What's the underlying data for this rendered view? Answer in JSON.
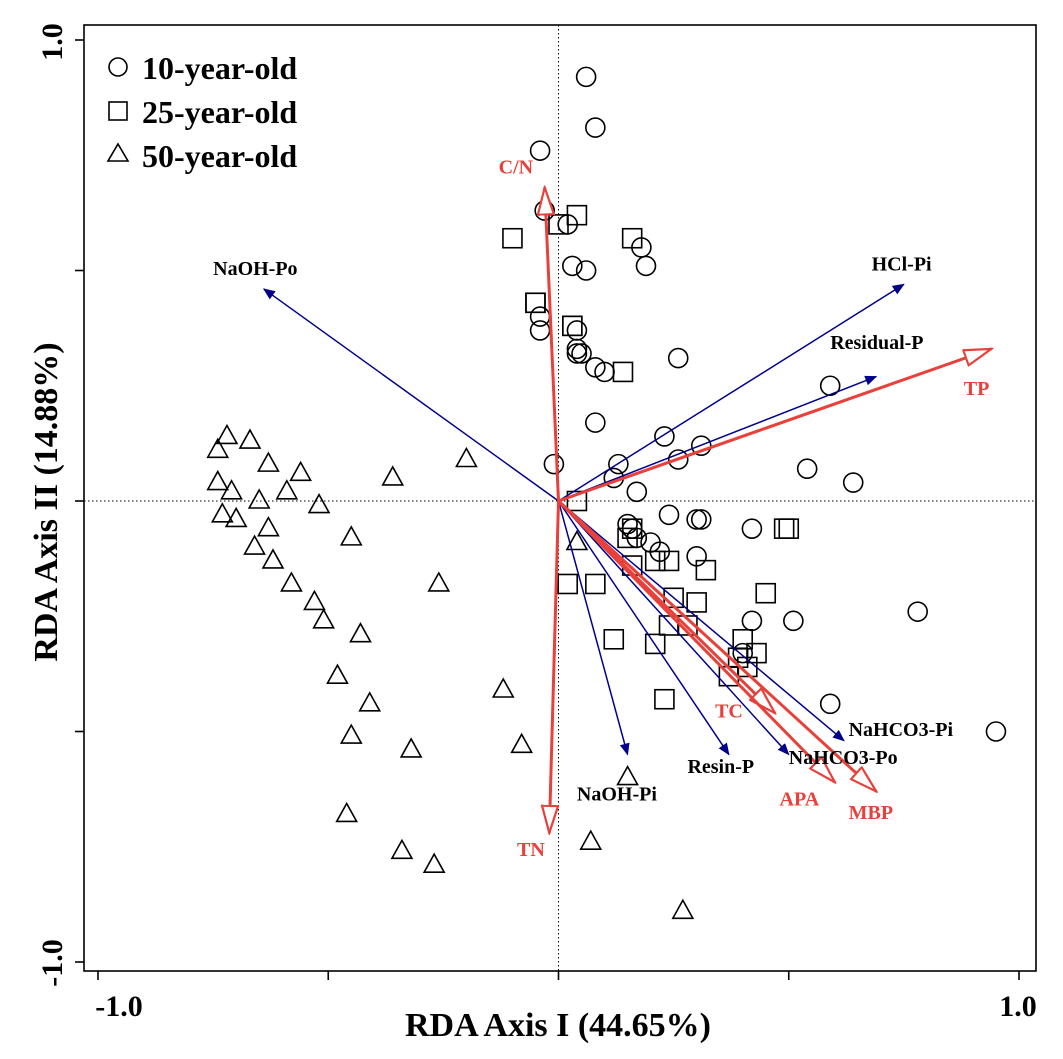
{
  "chart_data": {
    "type": "scatter",
    "title": "",
    "xlabel": "RDA Axis I (44.65%)",
    "ylabel": "RDA Axis II (14.88%)",
    "xlim": [
      -1.0,
      1.0
    ],
    "ylim": [
      -1.0,
      1.0
    ],
    "xticks": [
      -1.0,
      -0.5,
      0,
      0.5,
      1.0
    ],
    "yticks": [
      -1.0,
      -0.5,
      0,
      0.5,
      1.0
    ],
    "xtick_labels": [
      "-1.0",
      "1.0"
    ],
    "ytick_labels": [
      "1.0",
      "-1.0"
    ],
    "legend": {
      "position": "top-left",
      "entries": [
        {
          "marker": "circle",
          "label": "10-year-old"
        },
        {
          "marker": "square",
          "label": "25-year-old"
        },
        {
          "marker": "triangle",
          "label": "50-year-old"
        }
      ]
    },
    "series": [
      {
        "name": "10-year-old",
        "marker": "circle",
        "points": [
          [
            0.06,
            0.92
          ],
          [
            0.08,
            0.81
          ],
          [
            -0.04,
            0.76
          ],
          [
            -0.03,
            0.63
          ],
          [
            0.02,
            0.6
          ],
          [
            0.18,
            0.55
          ],
          [
            0.19,
            0.51
          ],
          [
            0.03,
            0.51
          ],
          [
            0.06,
            0.5
          ],
          [
            -0.04,
            0.4
          ],
          [
            -0.04,
            0.37
          ],
          [
            0.04,
            0.37
          ],
          [
            0.04,
            0.33
          ],
          [
            0.04,
            0.32
          ],
          [
            0.05,
            0.32
          ],
          [
            0.26,
            0.31
          ],
          [
            0.08,
            0.29
          ],
          [
            0.1,
            0.28
          ],
          [
            0.59,
            0.25
          ],
          [
            0.08,
            0.17
          ],
          [
            0.23,
            0.14
          ],
          [
            0.31,
            0.12
          ],
          [
            0.26,
            0.09
          ],
          [
            0.13,
            0.08
          ],
          [
            -0.01,
            0.08
          ],
          [
            0.54,
            0.07
          ],
          [
            0.12,
            0.05
          ],
          [
            0.64,
            0.04
          ],
          [
            0.17,
            0.02
          ],
          [
            0.24,
            -0.03
          ],
          [
            0.3,
            -0.04
          ],
          [
            0.31,
            -0.04
          ],
          [
            0.15,
            -0.05
          ],
          [
            0.17,
            -0.08
          ],
          [
            0.42,
            -0.06
          ],
          [
            0.16,
            -0.06
          ],
          [
            0.2,
            -0.09
          ],
          [
            0.22,
            -0.11
          ],
          [
            0.3,
            -0.12
          ],
          [
            0.78,
            -0.24
          ],
          [
            0.51,
            -0.26
          ],
          [
            0.42,
            -0.26
          ],
          [
            0.4,
            -0.33
          ],
          [
            0.59,
            -0.44
          ],
          [
            0.95,
            -0.5
          ]
        ]
      },
      {
        "name": "25-year-old",
        "marker": "square",
        "points": [
          [
            0.04,
            0.62
          ],
          [
            0.0,
            0.6
          ],
          [
            -0.1,
            0.57
          ],
          [
            0.16,
            0.57
          ],
          [
            -0.05,
            0.43
          ],
          [
            -0.05,
            0.43
          ],
          [
            0.03,
            0.38
          ],
          [
            0.03,
            0.38
          ],
          [
            0.14,
            0.28
          ],
          [
            0.04,
            0.0
          ],
          [
            0.16,
            -0.06
          ],
          [
            0.15,
            -0.08
          ],
          [
            0.21,
            -0.13
          ],
          [
            0.24,
            -0.13
          ],
          [
            0.49,
            -0.06
          ],
          [
            0.5,
            -0.06
          ],
          [
            0.32,
            -0.15
          ],
          [
            0.16,
            -0.14
          ],
          [
            0.25,
            -0.21
          ],
          [
            0.3,
            -0.22
          ],
          [
            0.02,
            -0.18
          ],
          [
            0.08,
            -0.18
          ],
          [
            0.45,
            -0.2
          ],
          [
            0.24,
            -0.27
          ],
          [
            0.28,
            -0.27
          ],
          [
            0.12,
            -0.3
          ],
          [
            0.21,
            -0.31
          ],
          [
            0.4,
            -0.3
          ],
          [
            0.43,
            -0.33
          ],
          [
            0.39,
            -0.34
          ],
          [
            0.41,
            -0.36
          ],
          [
            0.37,
            -0.38
          ],
          [
            0.23,
            -0.43
          ]
        ]
      },
      {
        "name": "50-year-old",
        "marker": "triangle",
        "points": [
          [
            -0.72,
            0.14
          ],
          [
            -0.74,
            0.11
          ],
          [
            -0.67,
            0.13
          ],
          [
            -0.63,
            0.08
          ],
          [
            -0.56,
            0.06
          ],
          [
            -0.36,
            0.05
          ],
          [
            -0.2,
            0.09
          ],
          [
            -0.74,
            0.04
          ],
          [
            -0.71,
            0.02
          ],
          [
            -0.59,
            0.02
          ],
          [
            -0.65,
            0.0
          ],
          [
            -0.52,
            -0.01
          ],
          [
            -0.73,
            -0.03
          ],
          [
            -0.7,
            -0.04
          ],
          [
            -0.63,
            -0.06
          ],
          [
            -0.45,
            -0.08
          ],
          [
            -0.66,
            -0.1
          ],
          [
            0.04,
            -0.09
          ],
          [
            -0.62,
            -0.13
          ],
          [
            -0.58,
            -0.18
          ],
          [
            -0.26,
            -0.18
          ],
          [
            -0.53,
            -0.22
          ],
          [
            -0.51,
            -0.26
          ],
          [
            -0.43,
            -0.29
          ],
          [
            -0.48,
            -0.38
          ],
          [
            -0.41,
            -0.44
          ],
          [
            -0.12,
            -0.41
          ],
          [
            -0.45,
            -0.51
          ],
          [
            -0.32,
            -0.54
          ],
          [
            -0.08,
            -0.53
          ],
          [
            0.15,
            -0.6
          ],
          [
            -0.46,
            -0.68
          ],
          [
            0.07,
            -0.74
          ],
          [
            -0.34,
            -0.76
          ],
          [
            -0.27,
            -0.79
          ],
          [
            0.27,
            -0.89
          ]
        ]
      }
    ],
    "vectors": [
      {
        "label": "NaOH-Po",
        "x": -0.64,
        "y": 0.46,
        "color": "#00008b",
        "head": "filled",
        "label_x": -0.75,
        "label_y": 0.49,
        "anchor": "start"
      },
      {
        "label": "HCl-Pi",
        "x": 0.75,
        "y": 0.47,
        "color": "#00008b",
        "head": "filled",
        "label_x": 0.68,
        "label_y": 0.5,
        "anchor": "start"
      },
      {
        "label": "Residual-P",
        "x": 0.69,
        "y": 0.27,
        "color": "#00008b",
        "head": "filled",
        "label_x": 0.59,
        "label_y": 0.33,
        "anchor": "start"
      },
      {
        "label": "NaOH-Pi",
        "x": 0.15,
        "y": -0.55,
        "color": "#00008b",
        "head": "filled",
        "label_x": 0.04,
        "label_y": -0.65,
        "anchor": "start"
      },
      {
        "label": "Resin-P",
        "x": 0.37,
        "y": -0.55,
        "color": "#00008b",
        "head": "filled",
        "label_x": 0.28,
        "label_y": -0.59,
        "anchor": "start"
      },
      {
        "label": "NaHCO3-Po",
        "x": 0.5,
        "y": -0.55,
        "color": "#00008b",
        "head": "filled",
        "label_x": 0.5,
        "label_y": -0.57,
        "anchor": "start"
      },
      {
        "label": "NaHCO3-Pi",
        "x": 0.62,
        "y": -0.52,
        "color": "#00008b",
        "head": "filled",
        "label_x": 0.63,
        "label_y": -0.51,
        "anchor": "start"
      },
      {
        "label": "C/N",
        "x": -0.03,
        "y": 0.68,
        "color": "#e8403a",
        "head": "open",
        "label_x": -0.13,
        "label_y": 0.71,
        "anchor": "start"
      },
      {
        "label": "TP",
        "x": 0.94,
        "y": 0.33,
        "color": "#e8403a",
        "head": "open",
        "label_x": 0.88,
        "label_y": 0.23,
        "anchor": "start"
      },
      {
        "label": "TN",
        "x": -0.02,
        "y": -0.72,
        "color": "#e8403a",
        "head": "open",
        "label_x": -0.09,
        "label_y": -0.77,
        "anchor": "start"
      },
      {
        "label": "TC",
        "x": 0.47,
        "y": -0.46,
        "color": "#e8403a",
        "head": "open",
        "label_x": 0.34,
        "label_y": -0.47,
        "anchor": "start"
      },
      {
        "label": "APA",
        "x": 0.6,
        "y": -0.61,
        "color": "#e8403a",
        "head": "open",
        "label_x": 0.48,
        "label_y": -0.66,
        "anchor": "start"
      },
      {
        "label": "MBP",
        "x": 0.69,
        "y": -0.63,
        "color": "#e8403a",
        "head": "open",
        "label_x": 0.63,
        "label_y": -0.69,
        "anchor": "start"
      }
    ],
    "reference_lines": {
      "x": 0,
      "y": 0,
      "style": "dotted"
    }
  }
}
